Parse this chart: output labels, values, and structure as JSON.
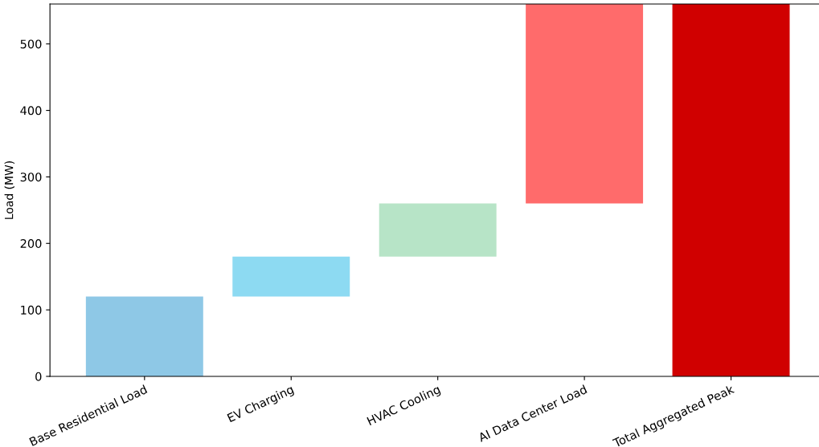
{
  "chart_data": {
    "type": "bar",
    "ylabel": "Load (MW)",
    "categories": [
      "Base Residential Load",
      "EV Charging",
      "HVAC Cooling",
      "AI Data Center Load",
      "Total Aggregated Peak"
    ],
    "values": [
      120,
      60,
      80,
      300,
      560
    ],
    "base": [
      0,
      120,
      180,
      260,
      0
    ],
    "colors": [
      "#8ec8e6",
      "#8ddaf2",
      "#b7e4c7",
      "#ff6b6b",
      "#d00000"
    ],
    "ylim": [
      0,
      560
    ],
    "yticks": [
      0,
      100,
      200,
      300,
      400,
      500
    ],
    "grid": false
  }
}
